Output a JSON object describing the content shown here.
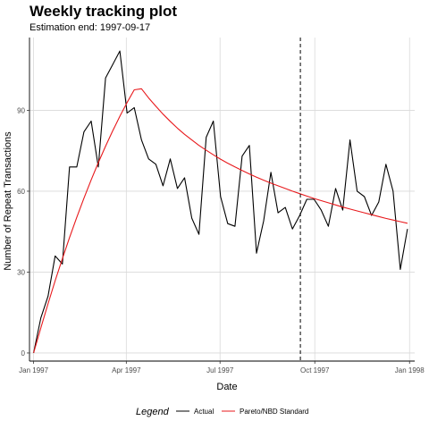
{
  "chart_data": {
    "type": "line",
    "title": "Weekly tracking plot",
    "subtitle": "Estimation end: 1997-09-17",
    "xlabel": "Date",
    "ylabel": "Number of Repeat Transactions",
    "x_start": "1997-01-01",
    "x_end": "1997-12-30",
    "xlim": [
      "1996-12-28",
      "1998-01-06"
    ],
    "ylim": [
      -3,
      117
    ],
    "x_ticks": [
      {
        "date": "1997-01-01",
        "label": "Jan 1997"
      },
      {
        "date": "1997-04-01",
        "label": "Apr 1997"
      },
      {
        "date": "1997-07-01",
        "label": "Jul 1997"
      },
      {
        "date": "1997-10-01",
        "label": "Oct 1997"
      },
      {
        "date": "1998-01-01",
        "label": "Jan 1998"
      }
    ],
    "y_ticks": [
      0,
      30,
      60,
      90
    ],
    "vline_date": "1997-09-17",
    "grid": true,
    "legend": {
      "title": "Legend",
      "position": "bottom"
    },
    "series": [
      {
        "name": "Actual",
        "color": "#000000",
        "values": [
          0,
          13,
          21,
          36,
          33,
          69,
          69,
          82,
          86,
          69,
          102,
          107,
          112,
          89,
          91,
          79,
          72,
          70,
          62,
          72,
          61,
          65,
          50,
          44,
          80,
          86,
          58,
          48,
          47,
          73,
          77,
          37,
          49,
          67,
          52,
          54,
          46,
          51,
          57,
          57,
          53,
          47,
          61,
          53,
          79,
          60,
          58,
          51,
          56,
          70,
          60,
          31,
          46
        ]
      },
      {
        "name": "Pareto/NBD Standard",
        "color": "#e8191c",
        "values": [
          0,
          9.3,
          18.2,
          26.8,
          35.0,
          42.8,
          50.3,
          57.4,
          64.2,
          70.6,
          76.7,
          82.4,
          87.8,
          92.9,
          97.6,
          98.0,
          94.6,
          91.5,
          88.6,
          85.9,
          83.4,
          81.1,
          79.0,
          77.0,
          75.2,
          73.5,
          71.9,
          70.4,
          69.0,
          67.7,
          66.4,
          65.2,
          64.1,
          63.0,
          62.0,
          61.0,
          60.0,
          59.1,
          58.2,
          57.3,
          56.5,
          55.7,
          54.9,
          54.1,
          53.4,
          52.7,
          52.0,
          51.3,
          50.6,
          49.9,
          49.3,
          48.7,
          48.1
        ]
      }
    ]
  }
}
